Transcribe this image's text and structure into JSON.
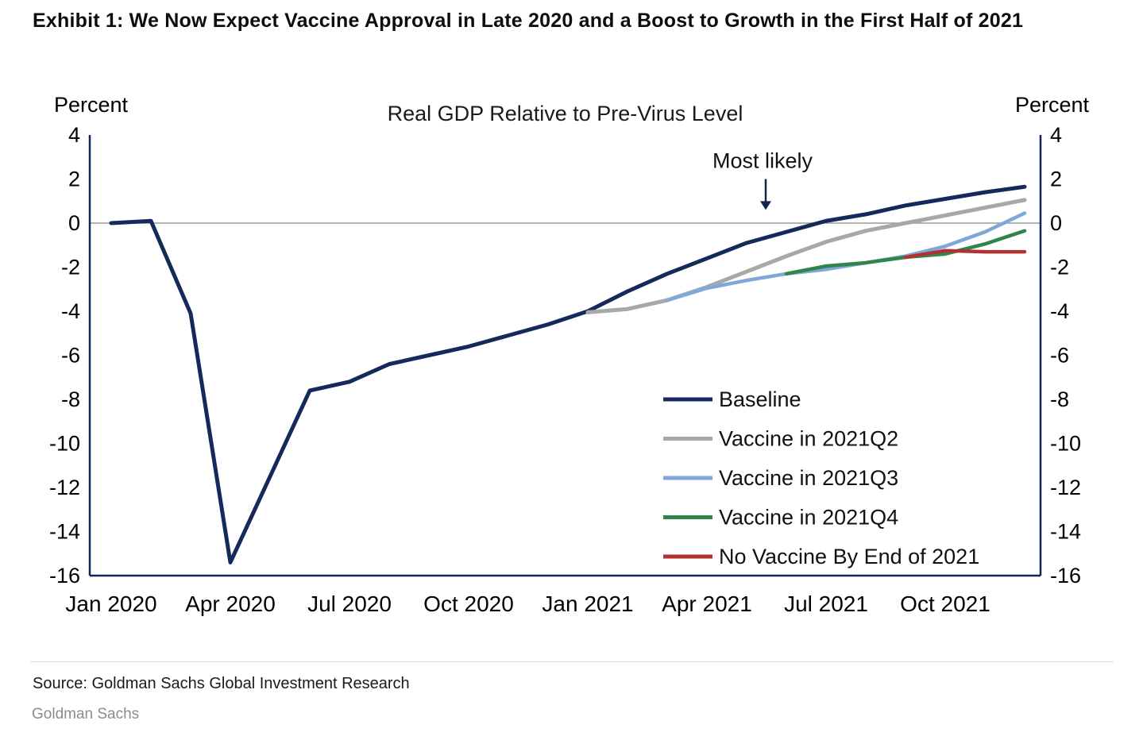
{
  "page": {
    "exhibit_title": "Exhibit 1: We Now Expect Vaccine Approval in Late 2020 and a Boost to Growth in the First Half of 2021",
    "source": "Source: Goldman Sachs Global Investment Research",
    "footer": "Goldman Sachs"
  },
  "chart_data": {
    "type": "line",
    "title": "Real GDP Relative to Pre-Virus Level",
    "axis_label_left": "Percent",
    "axis_label_right": "Percent",
    "axis_color": "#14234f",
    "ylim": [
      -16,
      4
    ],
    "ytick_step": 2,
    "zero_line": true,
    "x_unit": "months from Jan 2020, monthly points Jan 2020 - Dec 2021",
    "x_ticks": [
      {
        "month": 0,
        "label": "Jan 2020"
      },
      {
        "month": 3,
        "label": "Apr 2020"
      },
      {
        "month": 6,
        "label": "Jul 2020"
      },
      {
        "month": 9,
        "label": "Oct 2020"
      },
      {
        "month": 12,
        "label": "Jan 2021"
      },
      {
        "month": 15,
        "label": "Apr 2021"
      },
      {
        "month": 18,
        "label": "Jul 2021"
      },
      {
        "month": 21,
        "label": "Oct 2021"
      }
    ],
    "annotation": {
      "text": "Most likely",
      "month": 16.4,
      "text_value": 2.5,
      "arrow_from_value": 2.0,
      "arrow_to_value": 0.6
    },
    "legend": {
      "position": "inside-right-lower",
      "x": 835,
      "y0": 512,
      "row_h": 49.5,
      "swatch_len": 62
    },
    "series": [
      {
        "name": "Baseline",
        "color": "#16295b",
        "width": 5,
        "start_month": 0,
        "values": [
          0.0,
          0.1,
          -4.1,
          -15.4,
          -11.5,
          -7.6,
          -7.2,
          -6.4,
          -6.0,
          -5.6,
          -5.1,
          -4.6,
          -4.0,
          -3.1,
          -2.3,
          -1.6,
          -0.9,
          -0.4,
          0.1,
          0.4,
          0.8,
          1.1,
          1.4,
          1.65
        ]
      },
      {
        "name": "Vaccine in 2021Q2",
        "color": "#a8a8a8",
        "width": 5,
        "start_month": 12,
        "values": [
          -4.05,
          -3.9,
          -3.5,
          -2.9,
          -2.2,
          -1.5,
          -0.85,
          -0.35,
          0.0,
          0.35,
          0.7,
          1.05
        ]
      },
      {
        "name": "Vaccine in 2021Q3",
        "color": "#7fa8d9",
        "width": 4.5,
        "start_month": 14,
        "values": [
          -3.5,
          -2.95,
          -2.6,
          -2.3,
          -2.1,
          -1.8,
          -1.5,
          -1.05,
          -0.4,
          0.45
        ]
      },
      {
        "name": "Vaccine in 2021Q4",
        "color": "#31854b",
        "width": 4.5,
        "start_month": 17,
        "values": [
          -2.3,
          -1.95,
          -1.8,
          -1.55,
          -1.4,
          -0.95,
          -0.35
        ]
      },
      {
        "name": "No Vaccine By End of 2021",
        "color": "#b23232",
        "width": 4.5,
        "start_month": 20,
        "values": [
          -1.55,
          -1.25,
          -1.3,
          -1.3
        ]
      }
    ]
  }
}
